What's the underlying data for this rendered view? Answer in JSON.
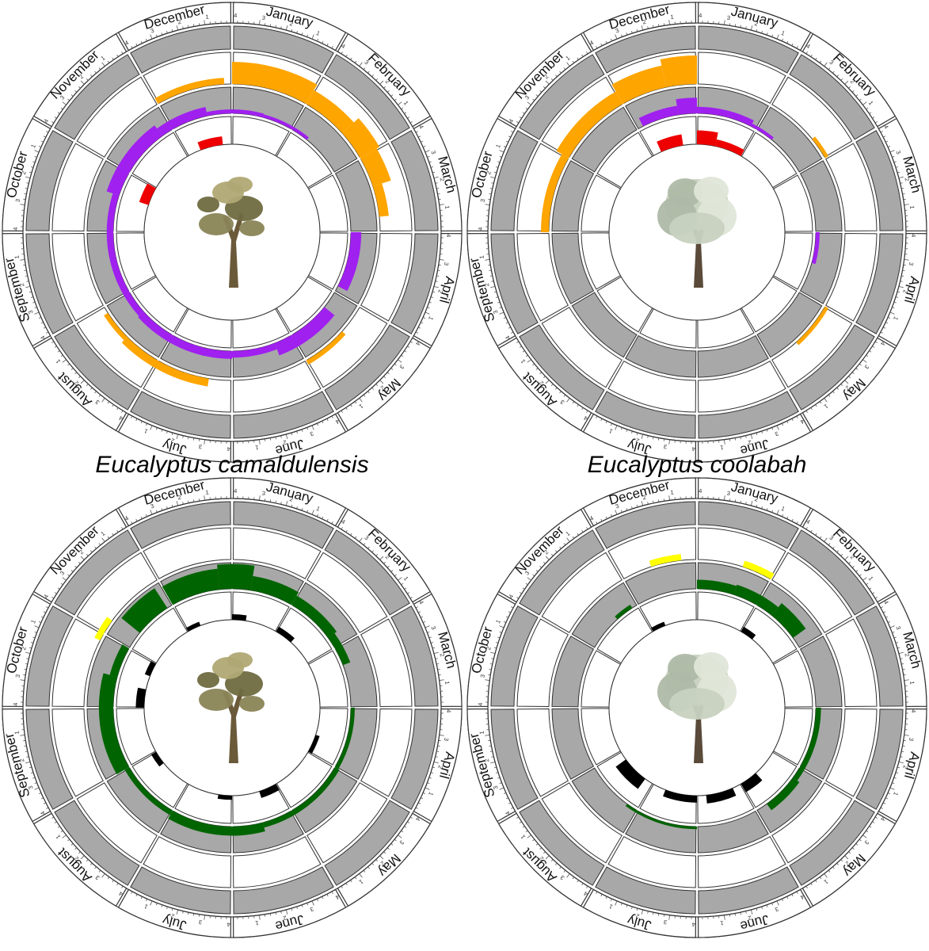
{
  "months": [
    "January",
    "February",
    "March",
    "April",
    "May",
    "June",
    "July",
    "August",
    "September",
    "October",
    "November",
    "December"
  ],
  "tick_labels": [
    "1",
    "2",
    "3",
    "4"
  ],
  "colors": {
    "ring_gray": "#a8a8a8",
    "orange": "#ffa500",
    "purple": "#a020f0",
    "red": "#ee0000",
    "green": "#006400",
    "yellow": "#ffff00",
    "black": "#000000"
  },
  "captions": [
    "Eucalyptus camaldulensis",
    "Eucalyptus coolabah"
  ],
  "chart_data": [
    {
      "type": "circular-histogram",
      "position": "top-left",
      "caption": "Eucalyptus camaldulensis",
      "icon": "gum-tree-icon",
      "rings_gray": [
        true,
        false,
        true,
        false,
        true
      ],
      "series": [
        {
          "color": "orange",
          "ring": 1,
          "segments": [
            {
              "from": 11.0,
              "to": 11.9,
              "value": 0.2
            },
            {
              "from": 12.0,
              "to": 13.0,
              "value": 0.7
            },
            {
              "from": 13.0,
              "to": 13.6,
              "value": 0.5
            },
            {
              "from": 13.6,
              "to": 14.0,
              "value": 0.7
            },
            {
              "from": 14.0,
              "to": 14.4,
              "value": 0.6
            },
            {
              "from": 14.4,
              "to": 14.8,
              "value": 0.3
            },
            {
              "from": 16.4,
              "to": 17.0,
              "value": 0.15
            },
            {
              "from": 18.3,
              "to": 19.5,
              "value": 0.25
            },
            {
              "from": 19.5,
              "to": 19.9,
              "value": 0.15
            }
          ]
        },
        {
          "color": "purple",
          "ring": 2,
          "segments": [
            {
              "from": 9.6,
              "to": 10.8,
              "value": 0.5
            },
            {
              "from": 10.8,
              "to": 11.6,
              "value": 0.35
            },
            {
              "from": 11.6,
              "to": 12.5,
              "value": 0.15
            },
            {
              "from": 12.5,
              "to": 13.3,
              "value": 0.12
            },
            {
              "from": 15.0,
              "to": 15.9,
              "value": 0.4
            },
            {
              "from": 16.3,
              "to": 17.3,
              "value": 0.5
            },
            {
              "from": 17.3,
              "to": 18.0,
              "value": 0.25
            },
            {
              "from": 18.0,
              "to": 19.6,
              "value": 0.3
            },
            {
              "from": 19.6,
              "to": 21.6,
              "value": 0.25
            }
          ]
        },
        {
          "color": "red",
          "ring": 3,
          "segments": [
            {
              "from": 9.6,
              "to": 10.0,
              "value": 0.35
            },
            {
              "from": 11.3,
              "to": 11.8,
              "value": 0.3
            }
          ]
        }
      ]
    },
    {
      "type": "circular-histogram",
      "position": "top-right",
      "caption": "Eucalyptus coolabah",
      "icon": "coolabah-tree-icon",
      "rings_gray": [
        true,
        false,
        true,
        false,
        true
      ],
      "series": [
        {
          "color": "orange",
          "ring": 1,
          "segments": [
            {
              "from": 9.0,
              "to": 10.0,
              "value": 0.25
            },
            {
              "from": 10.0,
              "to": 11.0,
              "value": 0.45
            },
            {
              "from": 11.0,
              "to": 11.6,
              "value": 0.7
            },
            {
              "from": 11.6,
              "to": 12.0,
              "value": 0.9
            },
            {
              "from": 13.7,
              "to": 14.0,
              "value": 0.12
            },
            {
              "from": 16.0,
              "to": 16.6,
              "value": 0.12
            }
          ]
        },
        {
          "color": "purple",
          "ring": 2,
          "segments": [
            {
              "from": 11.1,
              "to": 11.7,
              "value": 0.35
            },
            {
              "from": 11.7,
              "to": 12.0,
              "value": 0.6
            },
            {
              "from": 12.0,
              "to": 12.9,
              "value": 0.25
            },
            {
              "from": 12.9,
              "to": 13.3,
              "value": 0.12
            },
            {
              "from": 15.0,
              "to": 15.5,
              "value": 0.15
            }
          ]
        },
        {
          "color": "red",
          "ring": 3,
          "segments": [
            {
              "from": 11.2,
              "to": 11.7,
              "value": 0.4
            },
            {
              "from": 12.0,
              "to": 12.4,
              "value": 0.5
            },
            {
              "from": 12.4,
              "to": 13.0,
              "value": 0.25
            }
          ]
        }
      ]
    },
    {
      "type": "circular-histogram",
      "position": "bottom-left",
      "icon": "gum-tree-icon",
      "rings_gray": [
        true,
        false,
        true,
        false,
        true
      ],
      "series": [
        {
          "color": "yellow",
          "ring": 1,
          "segments": [
            {
              "from": 9.9,
              "to": 10.2,
              "value": 0.2
            }
          ]
        },
        {
          "color": "green",
          "ring": 2,
          "segments": [
            {
              "from": 10.3,
              "to": 10.9,
              "value": 0.9
            },
            {
              "from": 11.0,
              "to": 11.8,
              "value": 0.8
            },
            {
              "from": 11.8,
              "to": 12.3,
              "value": 0.95
            },
            {
              "from": 12.3,
              "to": 13.0,
              "value": 0.55
            },
            {
              "from": 13.0,
              "to": 13.8,
              "value": 0.4
            },
            {
              "from": 13.8,
              "to": 14.3,
              "value": 0.3
            },
            {
              "from": 15.0,
              "to": 16.0,
              "value": 0.15
            },
            {
              "from": 16.0,
              "to": 17.5,
              "value": 0.2
            },
            {
              "from": 17.5,
              "to": 19.0,
              "value": 0.35
            },
            {
              "from": 19.0,
              "to": 20.0,
              "value": 0.2
            },
            {
              "from": 20.0,
              "to": 21.5,
              "value": 0.55
            },
            {
              "from": 21.5,
              "to": 22.0,
              "value": 0.3
            }
          ]
        },
        {
          "color": "black",
          "ring": 3,
          "segments": [
            {
              "from": 9.7,
              "to": 10.0,
              "value": 0.2
            },
            {
              "from": 11.0,
              "to": 11.3,
              "value": 0.15
            },
            {
              "from": 12.0,
              "to": 12.3,
              "value": 0.2
            },
            {
              "from": 13.0,
              "to": 13.4,
              "value": 0.2
            },
            {
              "from": 15.6,
              "to": 16.0,
              "value": 0.15
            },
            {
              "from": 17.0,
              "to": 17.4,
              "value": 0.25
            },
            {
              "from": 18.0,
              "to": 18.3,
              "value": 0.15
            },
            {
              "from": 19.7,
              "to": 20.0,
              "value": 0.2
            },
            {
              "from": 21.0,
              "to": 21.4,
              "value": 0.3
            }
          ]
        }
      ]
    },
    {
      "type": "circular-histogram",
      "position": "bottom-right",
      "icon": "coolabah-tree-icon",
      "rings_gray": [
        true,
        false,
        true,
        false,
        true
      ],
      "series": [
        {
          "color": "yellow",
          "ring": 1,
          "segments": [
            {
              "from": 11.4,
              "to": 11.8,
              "value": 0.2
            },
            {
              "from": 12.6,
              "to": 13.0,
              "value": 0.2
            }
          ]
        },
        {
          "color": "green",
          "ring": 2,
          "segments": [
            {
              "from": 10.6,
              "to": 10.9,
              "value": 0.15
            },
            {
              "from": 12.0,
              "to": 12.6,
              "value": 0.35
            },
            {
              "from": 12.6,
              "to": 13.3,
              "value": 0.4
            },
            {
              "from": 13.3,
              "to": 13.8,
              "value": 0.6
            },
            {
              "from": 15.0,
              "to": 16.2,
              "value": 0.2
            },
            {
              "from": 16.2,
              "to": 16.8,
              "value": 0.3
            },
            {
              "from": 18.0,
              "to": 19.2,
              "value": 0.1
            }
          ]
        },
        {
          "color": "black",
          "ring": 3,
          "segments": [
            {
              "from": 11.0,
              "to": 11.3,
              "value": 0.15
            },
            {
              "from": 13.0,
              "to": 13.3,
              "value": 0.2
            },
            {
              "from": 16.6,
              "to": 17.0,
              "value": 0.35
            },
            {
              "from": 17.2,
              "to": 17.8,
              "value": 0.3
            },
            {
              "from": 18.0,
              "to": 18.7,
              "value": 0.25
            },
            {
              "from": 19.2,
              "to": 19.8,
              "value": 0.45
            }
          ]
        }
      ]
    }
  ]
}
